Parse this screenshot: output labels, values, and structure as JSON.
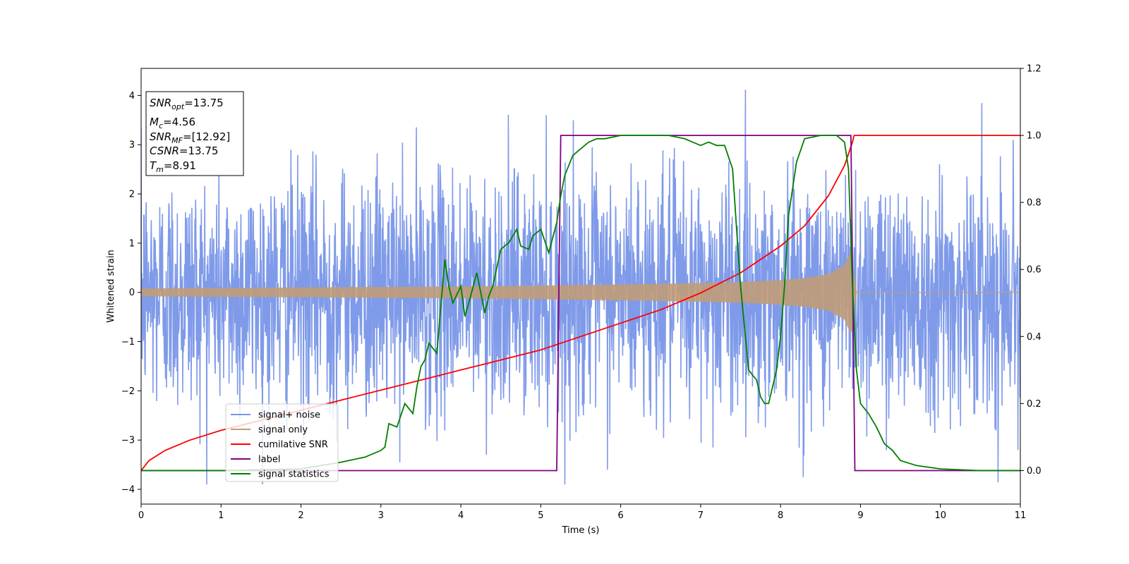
{
  "chart_data": {
    "type": "line",
    "xlabel": "Time (s)",
    "ylabel": "Whitened strain",
    "xlim": [
      0,
      11
    ],
    "ylim": [
      -4.3,
      4.55
    ],
    "y2lim": [
      -0.1,
      1.2
    ],
    "xticks": [
      0,
      1,
      2,
      3,
      4,
      5,
      6,
      7,
      8,
      9,
      10,
      11
    ],
    "yticks": [
      -4,
      -3,
      -2,
      -1,
      0,
      1,
      2,
      3,
      4
    ],
    "y2ticks": [
      "0.0",
      "0.2",
      "0.4",
      "0.6",
      "0.8",
      "1.0",
      "1.2"
    ],
    "grid": false,
    "legend_position": "lower-left",
    "annotation_box": {
      "lines": [
        {
          "base": "SNR",
          "sub": "opt",
          "value": "=13.75"
        },
        {
          "base": "M",
          "sub": "c",
          "value": "=4.56"
        },
        {
          "base": "SNR",
          "sub": "MF",
          "value": "=[12.92]"
        },
        {
          "base": "CSNR",
          "sub": "",
          "value": "=13.75"
        },
        {
          "base": "T",
          "sub": "m",
          "value": "=8.91"
        }
      ]
    },
    "series": [
      {
        "name": "signal+ noise",
        "axis": "left",
        "color": "#7895e8",
        "noise_amplitude_y": 1.2,
        "x_range": [
          0,
          11
        ]
      },
      {
        "name": "signal only",
        "axis": "left",
        "color": "#c09c78",
        "envelope_x": [
          0,
          1,
          2,
          3,
          4,
          5,
          6,
          7,
          7.5,
          8,
          8.3,
          8.6,
          8.8,
          8.88,
          8.95,
          11
        ],
        "envelope_y": [
          0.08,
          0.09,
          0.1,
          0.11,
          0.12,
          0.14,
          0.16,
          0.19,
          0.21,
          0.25,
          0.29,
          0.37,
          0.55,
          0.85,
          0.0,
          0.0
        ]
      },
      {
        "name": "cumilative SNR",
        "axis": "right",
        "color": "#ff0000",
        "x": [
          0,
          0.1,
          0.3,
          0.6,
          1,
          1.5,
          2,
          2.5,
          3,
          3.5,
          4,
          4.5,
          5,
          5.5,
          6,
          6.5,
          7,
          7.5,
          8,
          8.3,
          8.6,
          8.8,
          8.9,
          8.92,
          9.5,
          10,
          10.5,
          11
        ],
        "y": [
          0.0,
          0.03,
          0.06,
          0.09,
          0.12,
          0.15,
          0.18,
          0.21,
          0.24,
          0.27,
          0.3,
          0.33,
          0.36,
          0.4,
          0.44,
          0.48,
          0.53,
          0.59,
          0.67,
          0.73,
          0.82,
          0.91,
          0.98,
          1.0,
          1.0,
          1.0,
          1.0,
          1.0
        ]
      },
      {
        "name": "label",
        "axis": "right",
        "color": "#800080",
        "x": [
          0,
          5.2,
          5.25,
          8.88,
          8.93,
          11
        ],
        "y": [
          0.0,
          0.0,
          1.0,
          1.0,
          0.0,
          0.0
        ]
      },
      {
        "name": "signal statistics",
        "axis": "right",
        "color": "#008000",
        "x": [
          0,
          1,
          2,
          2.5,
          2.8,
          2.9,
          3.0,
          3.05,
          3.1,
          3.2,
          3.3,
          3.4,
          3.45,
          3.5,
          3.55,
          3.6,
          3.7,
          3.8,
          3.85,
          3.9,
          4.0,
          4.05,
          4.1,
          4.2,
          4.3,
          4.35,
          4.4,
          4.5,
          4.6,
          4.7,
          4.75,
          4.85,
          4.9,
          5.0,
          5.1,
          5.2,
          5.25,
          5.3,
          5.4,
          5.5,
          5.6,
          5.7,
          5.8,
          6.0,
          6.2,
          6.4,
          6.6,
          6.8,
          6.9,
          7.0,
          7.1,
          7.2,
          7.3,
          7.4,
          7.45,
          7.5,
          7.6,
          7.7,
          7.75,
          7.8,
          7.85,
          7.9,
          7.95,
          8.0,
          8.05,
          8.1,
          8.2,
          8.3,
          8.5,
          8.7,
          8.8,
          8.85,
          8.9,
          8.95,
          9.0,
          9.1,
          9.2,
          9.3,
          9.4,
          9.5,
          9.7,
          10.0,
          10.5,
          11.0
        ],
        "y": [
          0.0,
          0.0,
          0.005,
          0.025,
          0.04,
          0.05,
          0.06,
          0.07,
          0.14,
          0.13,
          0.2,
          0.17,
          0.25,
          0.31,
          0.33,
          0.38,
          0.35,
          0.63,
          0.55,
          0.5,
          0.55,
          0.46,
          0.5,
          0.59,
          0.47,
          0.52,
          0.55,
          0.66,
          0.68,
          0.72,
          0.67,
          0.66,
          0.7,
          0.72,
          0.65,
          0.74,
          0.82,
          0.88,
          0.94,
          0.96,
          0.98,
          0.99,
          0.99,
          1.0,
          1.0,
          1.0,
          1.0,
          0.99,
          0.98,
          0.97,
          0.98,
          0.97,
          0.97,
          0.9,
          0.72,
          0.55,
          0.3,
          0.27,
          0.22,
          0.2,
          0.2,
          0.25,
          0.3,
          0.4,
          0.55,
          0.76,
          0.92,
          0.99,
          1.0,
          1.0,
          0.98,
          0.9,
          0.55,
          0.3,
          0.2,
          0.17,
          0.13,
          0.08,
          0.06,
          0.03,
          0.015,
          0.005,
          0.0,
          0.0
        ]
      }
    ]
  }
}
